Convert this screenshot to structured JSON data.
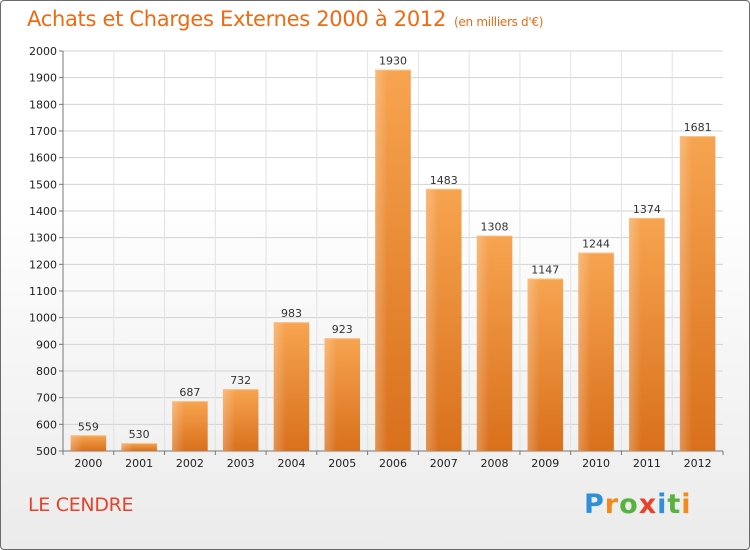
{
  "title": "Achats et Charges Externes 2000 à 2012",
  "subtitle": "(en milliers d'€)",
  "place": "LE CENDRE",
  "logo": {
    "letters": [
      "P",
      "r",
      "o",
      "x",
      "i",
      "t",
      "i"
    ],
    "colors": [
      "#2f8fd8",
      "#f28a1b",
      "#57b33e",
      "#e8432a",
      "#2f8fd8",
      "#57b33e",
      "#f28a1b"
    ]
  },
  "chart_data": {
    "type": "bar",
    "title": "Achats et Charges Externes 2000 à 2012",
    "subtitle": "(en milliers d'€)",
    "categories": [
      "2000",
      "2001",
      "2002",
      "2003",
      "2004",
      "2005",
      "2006",
      "2007",
      "2008",
      "2009",
      "2010",
      "2011",
      "2012"
    ],
    "values": [
      559,
      530,
      687,
      732,
      983,
      923,
      1930,
      1483,
      1308,
      1147,
      1244,
      1374,
      1681
    ],
    "ylim": [
      500,
      2000
    ],
    "yticks": [
      500,
      600,
      700,
      800,
      900,
      1000,
      1100,
      1200,
      1300,
      1400,
      1500,
      1600,
      1700,
      1800,
      1900,
      2000
    ],
    "grid": true,
    "bar_color": "#f0882f"
  }
}
